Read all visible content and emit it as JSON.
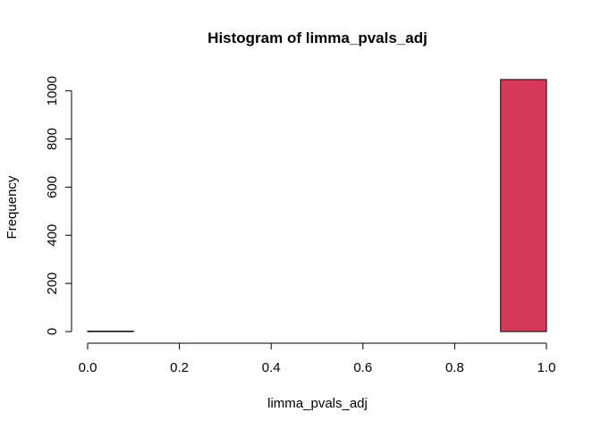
{
  "chart_data": {
    "type": "bar",
    "title": "Histogram of limma_pvals_adj",
    "xlabel": "limma_pvals_adj",
    "ylabel": "Frequency",
    "bins": [
      {
        "x0": 0.0,
        "x1": 0.1,
        "count": 2
      },
      {
        "x0": 0.1,
        "x1": 0.2,
        "count": 0
      },
      {
        "x0": 0.2,
        "x1": 0.3,
        "count": 0
      },
      {
        "x0": 0.3,
        "x1": 0.4,
        "count": 0
      },
      {
        "x0": 0.4,
        "x1": 0.5,
        "count": 0
      },
      {
        "x0": 0.5,
        "x1": 0.6,
        "count": 0
      },
      {
        "x0": 0.6,
        "x1": 0.7,
        "count": 0
      },
      {
        "x0": 0.7,
        "x1": 0.8,
        "count": 0
      },
      {
        "x0": 0.8,
        "x1": 0.9,
        "count": 0
      },
      {
        "x0": 0.9,
        "x1": 1.0,
        "count": 1047
      }
    ],
    "xlim": [
      0.0,
      1.0
    ],
    "ylim": [
      0,
      1047
    ],
    "xticks": [
      0.0,
      0.2,
      0.4,
      0.6,
      0.8,
      1.0
    ],
    "xtick_labels": [
      "0.0",
      "0.2",
      "0.4",
      "0.6",
      "0.8",
      "1.0"
    ],
    "yticks": [
      0,
      200,
      400,
      600,
      800,
      1000
    ],
    "ytick_labels": [
      "0",
      "200",
      "400",
      "600",
      "800",
      "1000"
    ],
    "bar_color": "#d63a5a",
    "grid": false
  }
}
